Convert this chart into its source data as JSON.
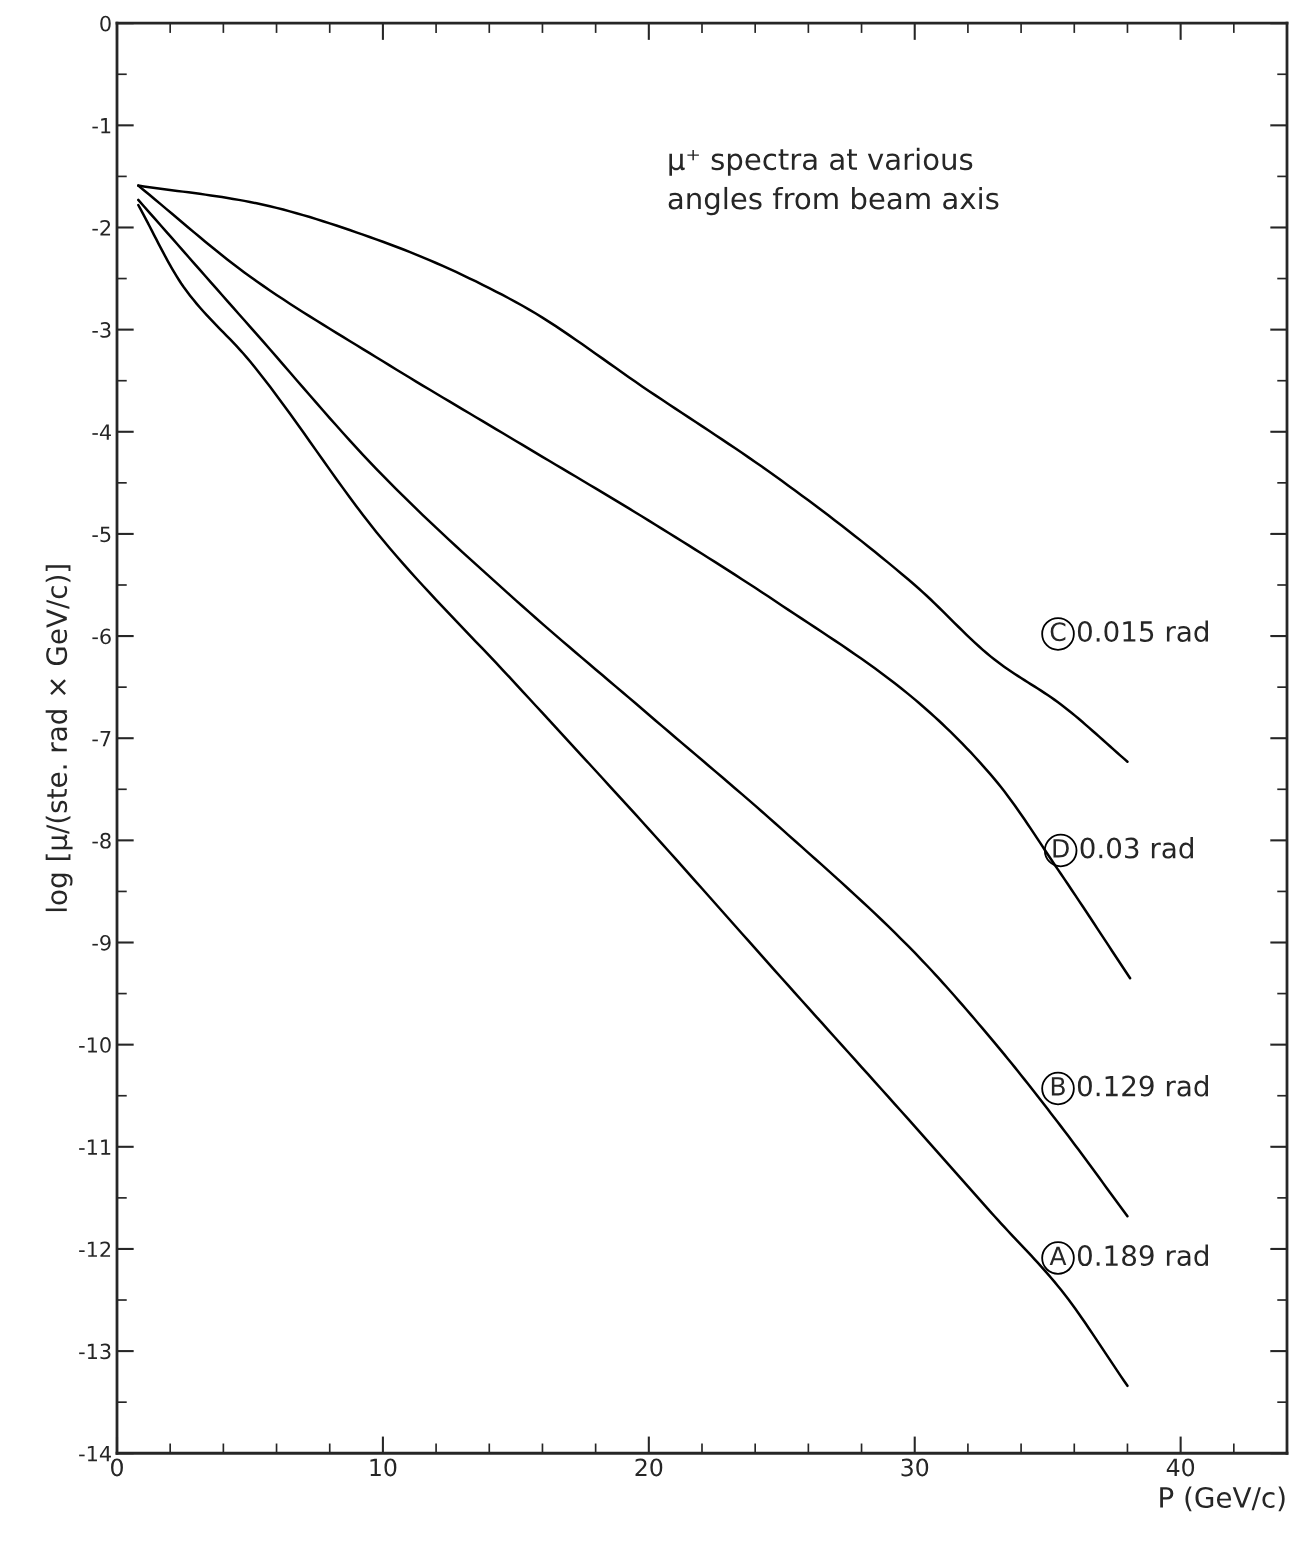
{
  "chart_data": {
    "type": "line",
    "xlabel": "P (GeV/c)",
    "ylabel": "log [μ/(ste. rad × GeV/c)]",
    "xlim": [
      0,
      44
    ],
    "ylim": [
      -14,
      0
    ],
    "xticks": [
      0,
      10,
      20,
      30,
      40
    ],
    "yticks": [
      0,
      -1,
      -2,
      -3,
      -4,
      -5,
      -6,
      -7,
      -8,
      -9,
      -10,
      -11,
      -12,
      -13,
      -14
    ],
    "grid": false,
    "legend": false,
    "marker": "none",
    "line_style": "solid",
    "annotations": [
      "μ⁺ spectra at various\nangles from beam axis"
    ],
    "series": [
      {
        "name": "C 0.015 rad",
        "color": "#000000",
        "x": [
          0.8,
          5,
          10,
          15,
          20,
          25,
          30,
          33,
          35.5,
          38
        ],
        "values": [
          -1.59,
          -1.75,
          -2.14,
          -2.73,
          -3.6,
          -4.48,
          -5.5,
          -6.23,
          -6.67,
          -7.23
        ]
      },
      {
        "name": "D 0.03 rad",
        "color": "#000000",
        "x": [
          0.8,
          5,
          10,
          15,
          20,
          25,
          30,
          33,
          35.5,
          38.1
        ],
        "values": [
          -1.59,
          -2.48,
          -3.31,
          -4.09,
          -4.87,
          -5.7,
          -6.62,
          -7.4,
          -8.33,
          -9.35
        ]
      },
      {
        "name": "B 0.129 rad",
        "color": "#000000",
        "x": [
          0.8,
          5,
          10,
          15,
          20,
          25,
          30,
          33,
          35.5,
          38
        ],
        "values": [
          -1.73,
          -2.97,
          -4.43,
          -5.65,
          -6.77,
          -7.89,
          -9.1,
          -9.98,
          -10.8,
          -11.68
        ]
      },
      {
        "name": "A 0.189 rad",
        "color": "#000000",
        "x": [
          0.8,
          2.5,
          5,
          10,
          15,
          20,
          25,
          30,
          33,
          35.5,
          38
        ],
        "values": [
          -1.78,
          -2.58,
          -3.31,
          -5.06,
          -6.47,
          -7.89,
          -9.35,
          -10.8,
          -11.68,
          -12.4,
          -13.34
        ]
      }
    ]
  }
}
